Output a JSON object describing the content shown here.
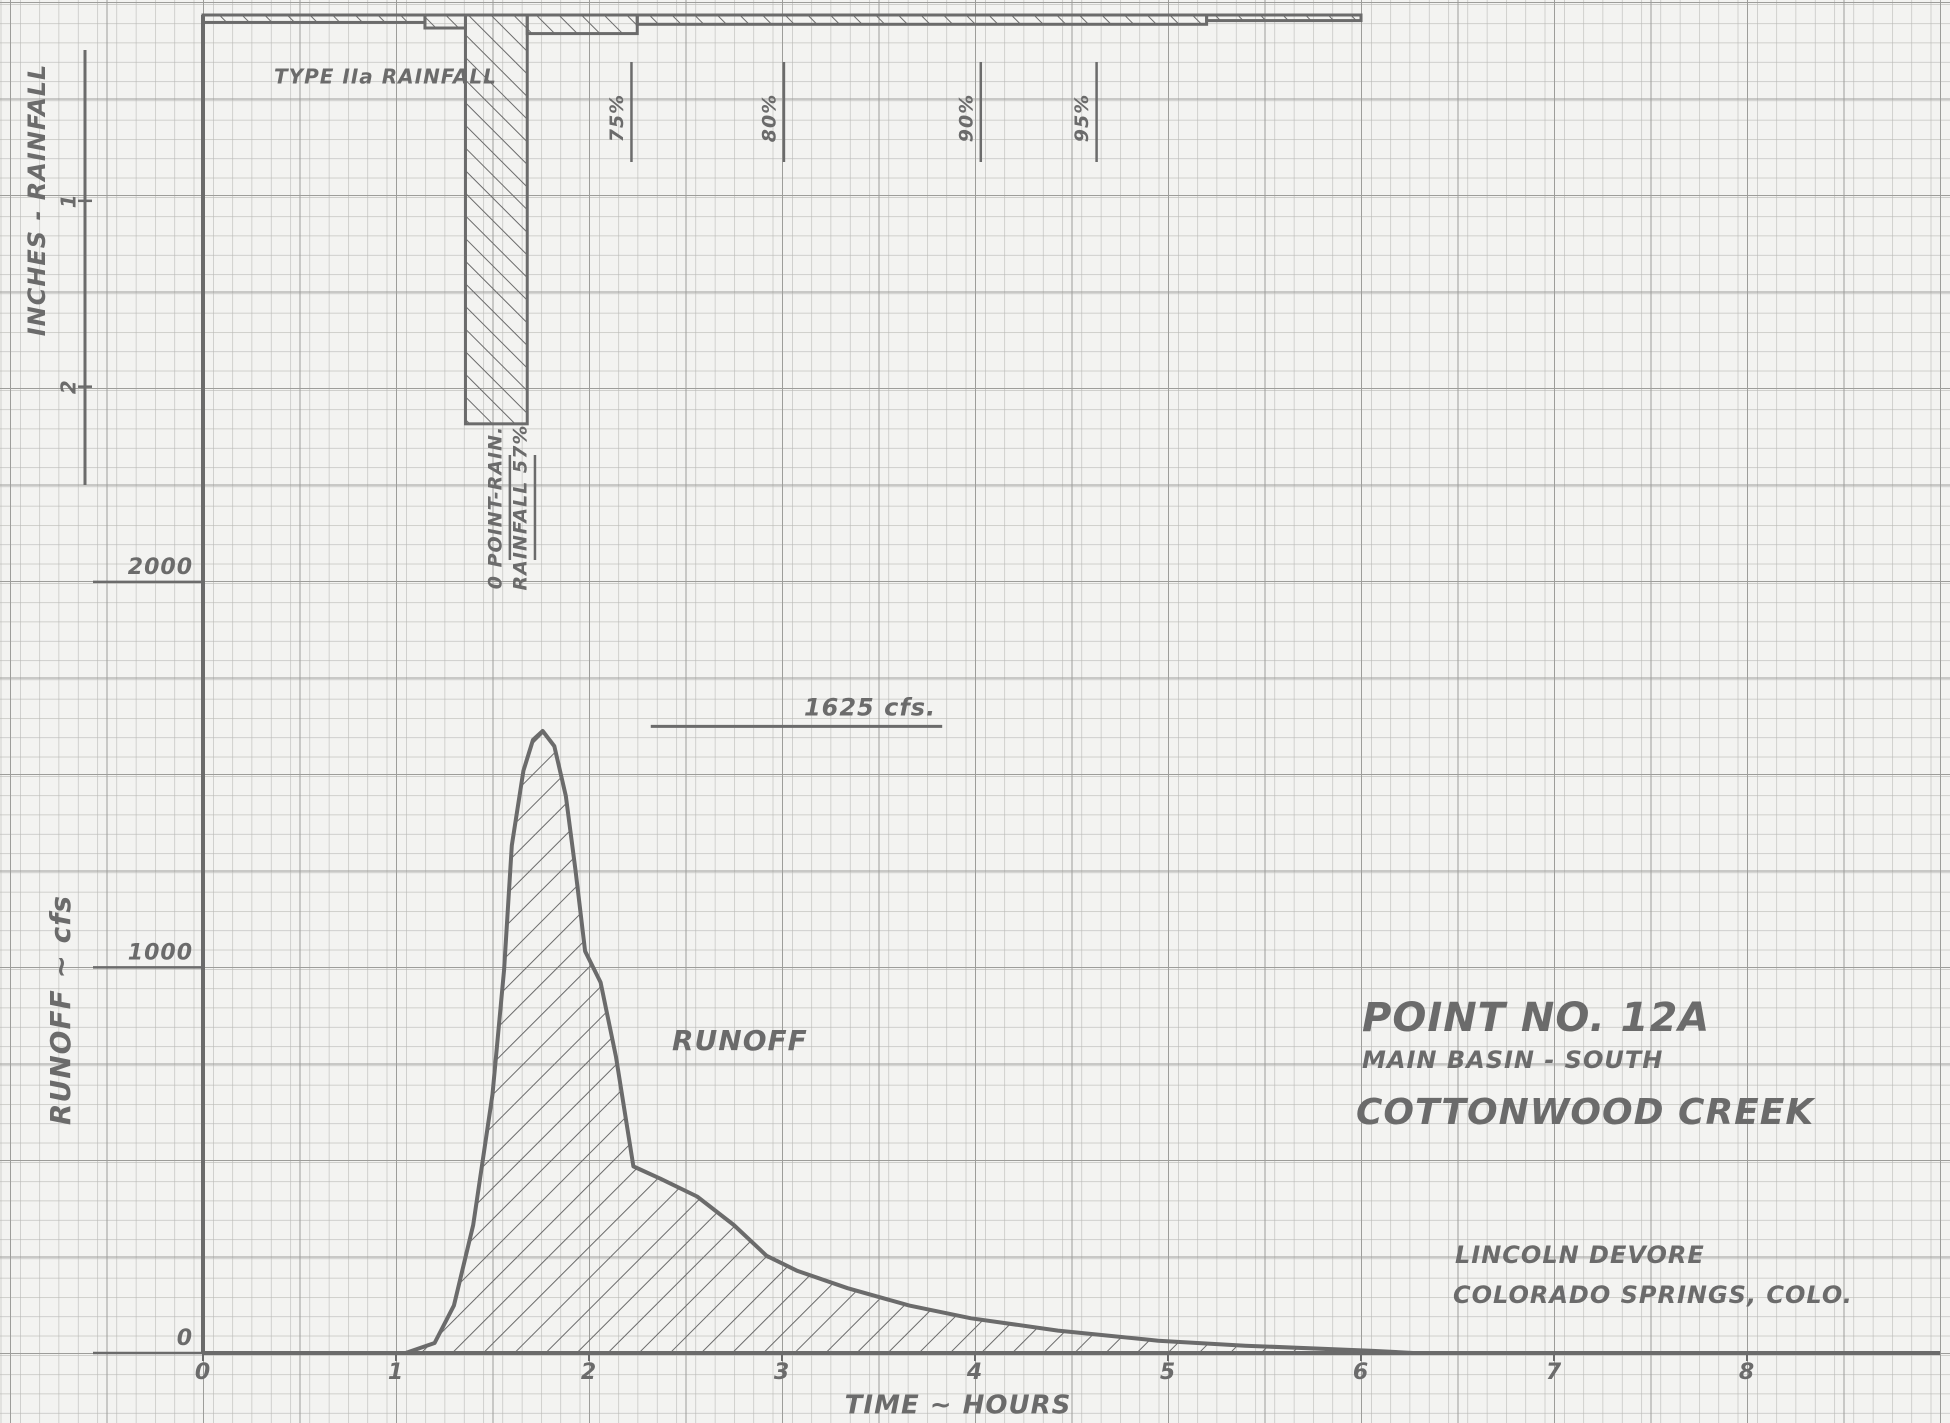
{
  "chart_data": {
    "type": "area",
    "title": "POINT NO. 12A",
    "subtitle": "MAIN BASIN - SOUTH",
    "annotations": [
      "COTTONWOOD CREEK",
      "LINCOLN DEVORE",
      "COLORADO SPRINGS, COLO."
    ],
    "x_label": "TIME ~ HOURS",
    "y_label": "RUNOFF ~ cfs",
    "y2_label": "INCHES - RAINFALL",
    "xlim": [
      0,
      9
    ],
    "xticks": [
      0,
      1,
      2,
      3,
      4,
      5,
      6,
      7,
      8
    ],
    "ylim": [
      0,
      3470
    ],
    "yticks": [
      0,
      1000,
      2000
    ],
    "y2lim": [
      0,
      7.2
    ],
    "y2ticks": [
      1,
      2
    ],
    "color": "#6b6b6b",
    "series": [
      {
        "name": "RUNOFF",
        "color": "#6b6b6b",
        "x": [
          1.05,
          1.2,
          1.3,
          1.4,
          1.5,
          1.56,
          1.6,
          1.66,
          1.71,
          1.76,
          1.82,
          1.88,
          1.93,
          1.98,
          2.06,
          2.14,
          2.23,
          2.37,
          2.56,
          2.75,
          2.92,
          3.08,
          3.34,
          3.66,
          3.98,
          4.43,
          4.95,
          5.4,
          6.05,
          6.27
        ],
        "values": [
          0,
          26,
          123,
          332,
          671,
          994,
          1316,
          1510,
          1590,
          1613,
          1574,
          1445,
          1252,
          1042,
          961,
          768,
          484,
          452,
          406,
          332,
          252,
          213,
          168,
          123,
          90,
          58,
          32,
          19,
          6,
          0
        ]
      },
      {
        "name": "TYPE IIa RAINFALL",
        "color": "#6b6b6b",
        "axis": "y2",
        "bins": [
          0,
          1.15,
          1.36,
          1.68,
          2.25,
          5.2,
          6.0
        ],
        "values": [
          0.04,
          0.07,
          2.2,
          0.1,
          0.05,
          0.03
        ]
      }
    ],
    "markers": [
      {
        "x": 1.59,
        "label": "0 POINT-RAIN."
      },
      {
        "x": 1.72,
        "label": "RAINFALL 57%"
      },
      {
        "x": 2.22,
        "label": "75%"
      },
      {
        "x": 3.01,
        "label": "80%"
      },
      {
        "x": 4.03,
        "label": "90%"
      },
      {
        "x": 4.63,
        "label": "95%"
      }
    ],
    "peak": {
      "value": 1625,
      "label": "1625 cfs.",
      "x": [
        2.32,
        3.83
      ]
    }
  }
}
